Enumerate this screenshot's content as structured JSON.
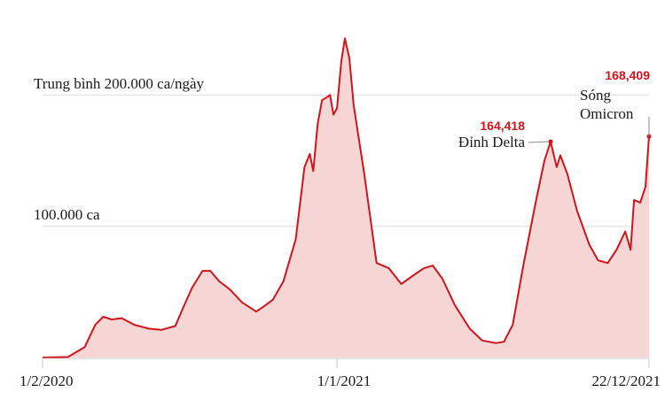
{
  "colors": {
    "line": "#d0141c",
    "area": "#f6d5d5",
    "annotation_value": "#d0141c",
    "gridline": "#dddddd",
    "axis": "#c8c8c8",
    "text": "#1a1a1a"
  },
  "chart_data": {
    "type": "area",
    "title": "",
    "xlabel": "",
    "ylabel": "",
    "ylim": [
      0,
      250000
    ],
    "grid": true,
    "legend": "none",
    "x_ticks": [
      "1/2/2020",
      "1/1/2021",
      "22/12/2021"
    ],
    "gridlines": [
      {
        "value": 200000,
        "label": "Trung bình 200.000 ca/ngày"
      },
      {
        "value": 100000,
        "label": "100.000 ca"
      }
    ],
    "annotations": [
      {
        "value_label": "164,418",
        "text_lines": [
          "Đỉnh Delta"
        ],
        "x": "2021-09-01",
        "y": 164418
      },
      {
        "value_label": "168,409",
        "text_lines": [
          "Sóng",
          "Omicron"
        ],
        "x": "2021-12-22",
        "y": 168409
      }
    ],
    "series": [
      {
        "points": [
          [
            "2020-02-01",
            0
          ],
          [
            "2020-03-01",
            400
          ],
          [
            "2020-03-20",
            8000
          ],
          [
            "2020-04-01",
            25000
          ],
          [
            "2020-04-10",
            31000
          ],
          [
            "2020-04-20",
            29000
          ],
          [
            "2020-05-01",
            30000
          ],
          [
            "2020-05-15",
            25000
          ],
          [
            "2020-06-01",
            22000
          ],
          [
            "2020-06-15",
            21000
          ],
          [
            "2020-07-01",
            24000
          ],
          [
            "2020-07-10",
            38000
          ],
          [
            "2020-07-20",
            53000
          ],
          [
            "2020-08-01",
            66000
          ],
          [
            "2020-08-10",
            66000
          ],
          [
            "2020-08-20",
            58000
          ],
          [
            "2020-09-01",
            52000
          ],
          [
            "2020-09-15",
            42000
          ],
          [
            "2020-10-01",
            35000
          ],
          [
            "2020-10-10",
            39000
          ],
          [
            "2020-10-20",
            44000
          ],
          [
            "2020-11-01",
            58000
          ],
          [
            "2020-11-15",
            90000
          ],
          [
            "2020-11-25",
            145000
          ],
          [
            "2020-12-01",
            155000
          ],
          [
            "2020-12-05",
            142000
          ],
          [
            "2020-12-10",
            178000
          ],
          [
            "2020-12-15",
            196000
          ],
          [
            "2020-12-20",
            198000
          ],
          [
            "2020-12-24",
            200000
          ],
          [
            "2020-12-28",
            185000
          ],
          [
            "2021-01-01",
            190000
          ],
          [
            "2021-01-06",
            226000
          ],
          [
            "2021-01-10",
            243000
          ],
          [
            "2021-01-15",
            228000
          ],
          [
            "2021-01-20",
            192000
          ],
          [
            "2021-02-01",
            140000
          ],
          [
            "2021-02-15",
            72000
          ],
          [
            "2021-03-01",
            68000
          ],
          [
            "2021-03-15",
            56000
          ],
          [
            "2021-04-01",
            64000
          ],
          [
            "2021-04-10",
            68000
          ],
          [
            "2021-04-20",
            70000
          ],
          [
            "2021-05-01",
            60000
          ],
          [
            "2021-05-15",
            40000
          ],
          [
            "2021-06-01",
            22000
          ],
          [
            "2021-06-15",
            13000
          ],
          [
            "2021-07-01",
            11000
          ],
          [
            "2021-07-10",
            12000
          ],
          [
            "2021-07-20",
            25000
          ],
          [
            "2021-08-01",
            70000
          ],
          [
            "2021-08-15",
            118000
          ],
          [
            "2021-08-25",
            150000
          ],
          [
            "2021-09-01",
            164418
          ],
          [
            "2021-09-08",
            145000
          ],
          [
            "2021-09-12",
            154000
          ],
          [
            "2021-09-20",
            140000
          ],
          [
            "2021-10-01",
            112000
          ],
          [
            "2021-10-15",
            86000
          ],
          [
            "2021-10-25",
            74000
          ],
          [
            "2021-11-05",
            72000
          ],
          [
            "2021-11-15",
            82000
          ],
          [
            "2021-11-25",
            96000
          ],
          [
            "2021-12-01",
            82000
          ],
          [
            "2021-12-05",
            120000
          ],
          [
            "2021-12-12",
            118000
          ],
          [
            "2021-12-18",
            130000
          ],
          [
            "2021-12-22",
            168409
          ]
        ]
      }
    ]
  }
}
